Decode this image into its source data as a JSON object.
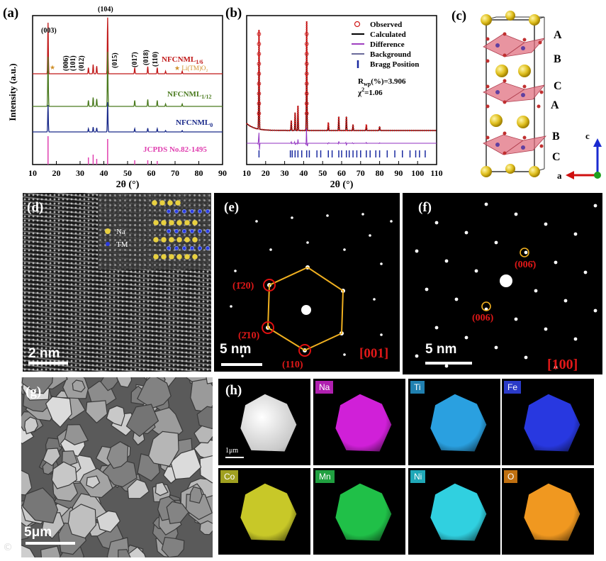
{
  "panels": {
    "a": "(a)",
    "b": "(b)",
    "c": "(c)",
    "d": "(d)",
    "e": "(e)",
    "f": "(f)",
    "g": "(g)",
    "h": "(h)"
  },
  "panel_a": {
    "ylabel": "Intensity (a.u.)",
    "xlabel": "2θ (°)",
    "xticks": [
      "10",
      "20",
      "30",
      "40",
      "50",
      "60",
      "70",
      "80",
      "90"
    ],
    "traces": [
      {
        "name": "NFCNML",
        "sub": "1/6",
        "color": "#c01818"
      },
      {
        "name": "NFCNML",
        "sub": "1/12",
        "color": "#4a7a1e"
      },
      {
        "name": "NFCNML",
        "sub": "0",
        "color": "#1a2a8a"
      }
    ],
    "reference": "JCPDS No.82-1495",
    "reference_color": "#e040b0",
    "impurity_label": "Li(TM)O₂",
    "impurity_color": "#d0902a",
    "peaks": [
      "(003)",
      "(104)",
      "(006)",
      "(101)",
      "(012)",
      "(015)",
      "(017)",
      "(018)",
      "(110)"
    ]
  },
  "panel_b": {
    "xlabel": "2θ (°)",
    "xticks": [
      "10",
      "20",
      "30",
      "40",
      "50",
      "60",
      "70",
      "80",
      "90",
      "100",
      "110"
    ],
    "legend": [
      "Observed",
      "Calculated",
      "Difference",
      "Background",
      "Bragg Position"
    ],
    "rwp": "R",
    "rwp_sub": "wp",
    "rwp_val": "(%)=3.906",
    "chi": "χ",
    "chi_val": "=1.06"
  },
  "panel_c": {
    "layers": [
      "A",
      "B",
      "C",
      "A",
      "B",
      "C"
    ],
    "axes": {
      "c": "c",
      "a": "a"
    }
  },
  "panel_d": {
    "legend": [
      {
        "label": "Na"
      },
      {
        "label": "TM"
      }
    ],
    "scale": "2 nm"
  },
  "panel_e": {
    "spots": [
      "(1̄20)",
      "(2̄10)",
      "(110)"
    ],
    "scale": "5 nm",
    "zone": "[001]"
  },
  "panel_f": {
    "spots": [
      "(006̄)",
      "(006)"
    ],
    "scale": "5 nm",
    "zone": "[100]"
  },
  "panel_g": {
    "scale": "5μm"
  },
  "panel_h": {
    "scale": "1μm",
    "elements": [
      {
        "label": "Na",
        "label_bg": "#b020b0",
        "color": "#d020d8"
      },
      {
        "label": "Ti",
        "label_bg": "#2080b0",
        "color": "#2aa0e0"
      },
      {
        "label": "Fe",
        "label_bg": "#2a3ac8",
        "color": "#2838e0"
      },
      {
        "label": "Co",
        "label_bg": "#a0a020",
        "color": "#c8c828"
      },
      {
        "label": "Mn",
        "label_bg": "#20a040",
        "color": "#20c048"
      },
      {
        "label": "Ni",
        "label_bg": "#20a8b8",
        "color": "#30d0e0"
      },
      {
        "label": "O",
        "label_bg": "#c07010",
        "color": "#f09820"
      }
    ]
  }
}
